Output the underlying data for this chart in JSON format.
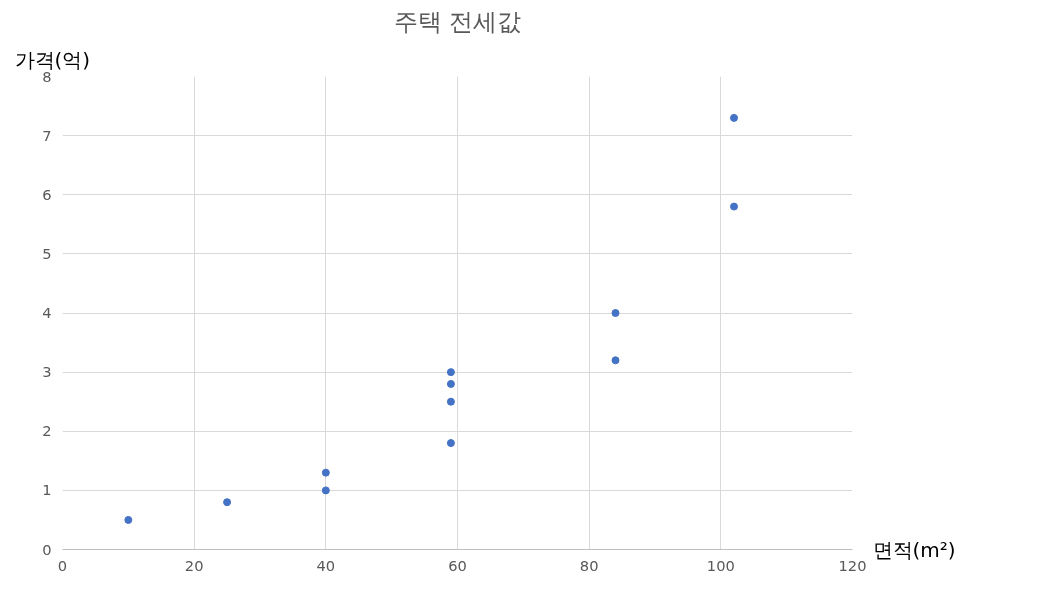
{
  "chart_data": {
    "type": "scatter",
    "title": "주택 전세값",
    "xlabel": "면적(m²)",
    "ylabel": "가격(억)",
    "x": [
      10,
      25,
      40,
      40,
      59,
      59,
      59,
      59,
      84,
      84,
      102,
      102
    ],
    "series": [
      {
        "color": "#4472c4",
        "values": [
          0.5,
          0.8,
          1.0,
          1.3,
          1.8,
          2.5,
          2.8,
          3.0,
          3.2,
          4.0,
          5.8,
          7.3
        ]
      }
    ],
    "xlim": [
      0,
      120
    ],
    "ylim": [
      0,
      8
    ],
    "xticks": [
      0,
      20,
      40,
      60,
      80,
      100,
      120
    ],
    "yticks": [
      0,
      1,
      2,
      3,
      4,
      5,
      6,
      7,
      8
    ],
    "grid": true,
    "marker": "circle"
  }
}
